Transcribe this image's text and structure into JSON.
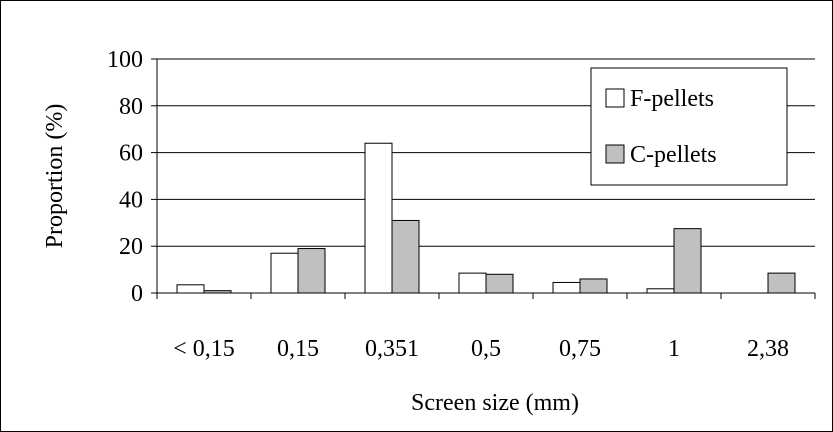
{
  "chart_data": {
    "type": "bar",
    "xlabel": "Screen size (mm)",
    "ylabel": "Proportion (%)",
    "ylim": [
      0,
      100
    ],
    "yticks": [
      "0",
      "20",
      "40",
      "60",
      "80",
      "100"
    ],
    "categories": [
      "< 0,15",
      "0,15",
      "0,351",
      "0,5",
      "0,75",
      "1",
      "2,38"
    ],
    "series": [
      {
        "name": "F-pellets",
        "color": "#ffffff",
        "values": [
          3.5,
          17,
          64,
          8.5,
          4.5,
          1.8,
          0
        ]
      },
      {
        "name": "C-pellets",
        "color": "#c0c0c0",
        "values": [
          1,
          19,
          31,
          8,
          6,
          27.5,
          8.5
        ]
      }
    ],
    "grid": true,
    "legend": "top-right"
  }
}
